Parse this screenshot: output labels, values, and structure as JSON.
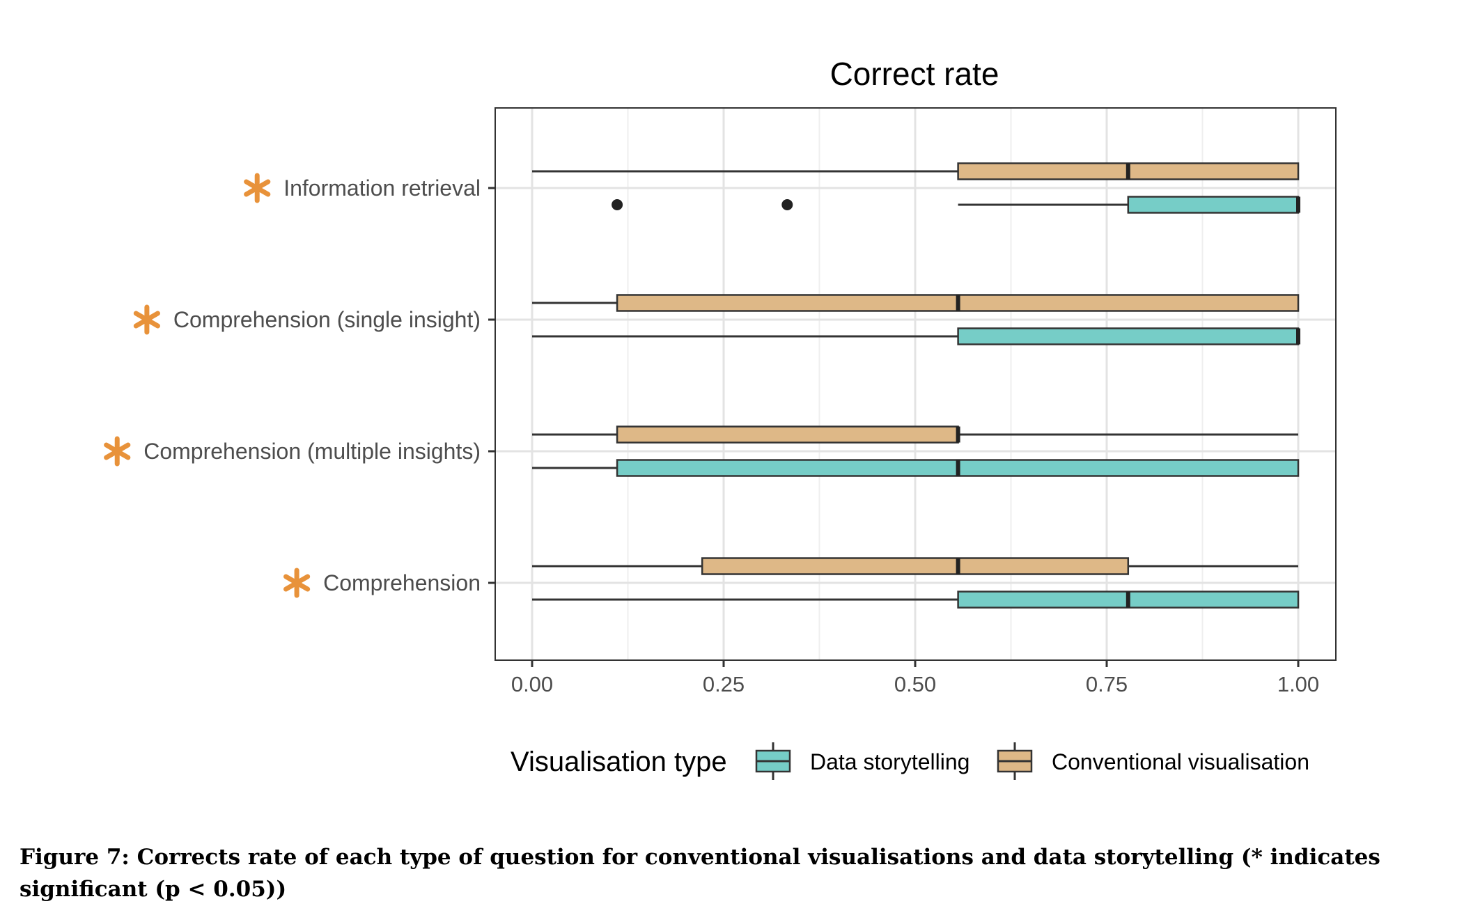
{
  "chart_data": {
    "type": "boxplot",
    "orientation": "horizontal",
    "title": "Correct rate",
    "xlabel": "",
    "ylabel": "",
    "xlim": [
      -0.05,
      1.05
    ],
    "x_ticks": [
      0,
      0.25,
      0.5,
      0.75,
      1
    ],
    "x_tick_labels": [
      "0.00",
      "0.25",
      "0.50",
      "0.75",
      "1.00"
    ],
    "grid": true,
    "categories": [
      "Information retrieval",
      "Comprehension (single insight)",
      "Comprehension (multiple insights)",
      "Comprehension"
    ],
    "significance_marker": "*",
    "significant": [
      true,
      true,
      true,
      true
    ],
    "legend": {
      "title": "Visualisation type",
      "position": "bottom",
      "entries": [
        "Data storytelling",
        "Conventional visualisation"
      ]
    },
    "series": [
      {
        "name": "Conventional visualisation",
        "color": "#deb887",
        "boxes": [
          {
            "min": 0.0,
            "q1": 0.556,
            "median": 0.778,
            "q3": 1.0,
            "max": 1.0,
            "outliers": []
          },
          {
            "min": 0.0,
            "q1": 0.111,
            "median": 0.556,
            "q3": 1.0,
            "max": 1.0,
            "outliers": []
          },
          {
            "min": 0.0,
            "q1": 0.111,
            "median": 0.556,
            "q3": 0.556,
            "max": 1.0,
            "outliers": []
          },
          {
            "min": 0.0,
            "q1": 0.222,
            "median": 0.556,
            "q3": 0.778,
            "max": 1.0,
            "outliers": []
          }
        ]
      },
      {
        "name": "Data storytelling",
        "color": "#76cdc7",
        "boxes": [
          {
            "min": 0.556,
            "q1": 0.778,
            "median": 1.0,
            "q3": 1.0,
            "max": 1.0,
            "outliers": [
              0.111,
              0.333
            ]
          },
          {
            "min": 0.0,
            "q1": 0.556,
            "median": 1.0,
            "q3": 1.0,
            "max": 1.0,
            "outliers": []
          },
          {
            "min": 0.0,
            "q1": 0.111,
            "median": 0.556,
            "q3": 1.0,
            "max": 1.0,
            "outliers": []
          },
          {
            "min": 0.0,
            "q1": 0.556,
            "median": 0.778,
            "q3": 1.0,
            "max": 1.0,
            "outliers": []
          }
        ]
      }
    ]
  },
  "caption": "Figure 7: Corrects rate of each type of question for conventional visualisations and data storytelling (* indicates significant (p < 0.05))",
  "colors": {
    "asterisk": "#e8923a",
    "panel_border": "#333333",
    "grid_major": "#e3e3e3",
    "grid_minor": "#efefef"
  }
}
